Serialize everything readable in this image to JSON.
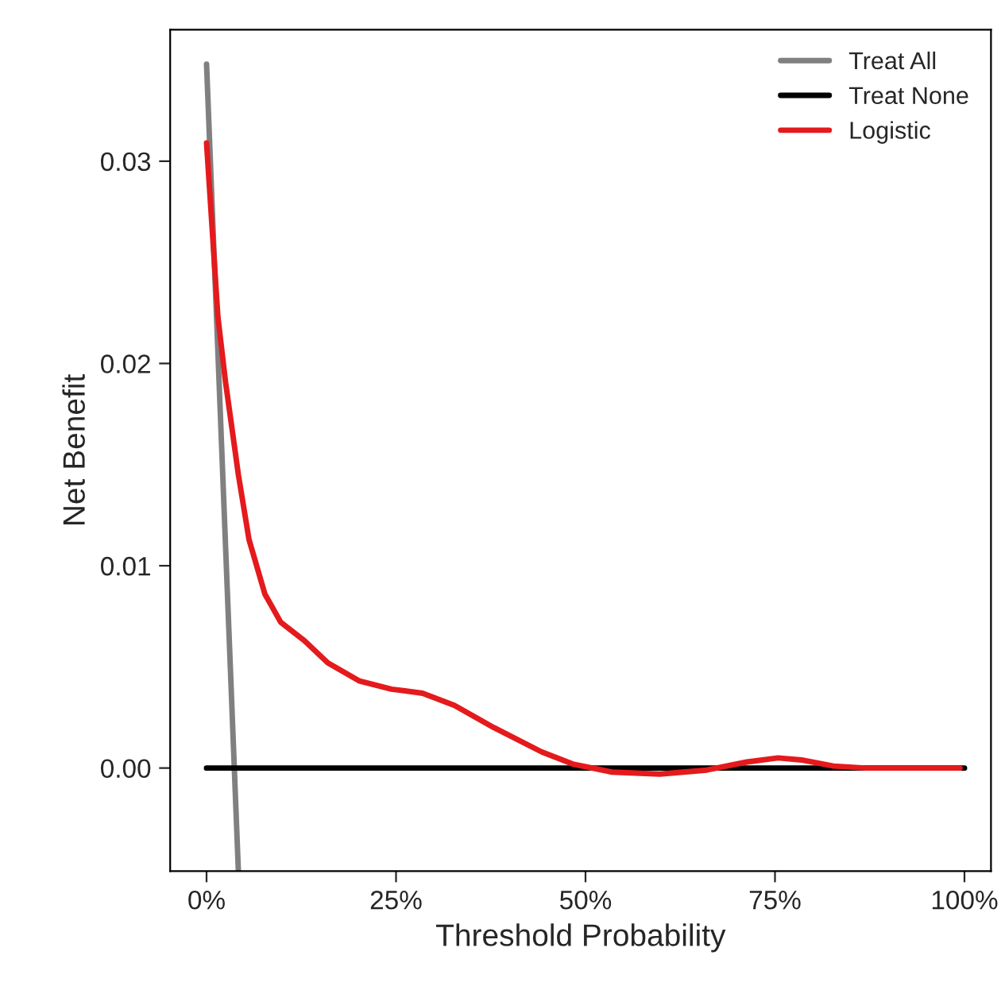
{
  "chart_data": {
    "type": "line",
    "xlabel": "Threshold Probability",
    "ylabel": "Net Benefit",
    "xlim": [
      -4.8,
      103.5
    ],
    "ylim": [
      -0.0051,
      0.0365
    ],
    "xticks": [
      {
        "value": 0,
        "label": "0%"
      },
      {
        "value": 25,
        "label": "25%"
      },
      {
        "value": 50,
        "label": "50%"
      },
      {
        "value": 75,
        "label": "75%"
      },
      {
        "value": 100,
        "label": "100%"
      }
    ],
    "yticks": [
      {
        "value": 0,
        "label": "0.00"
      },
      {
        "value": 0.01,
        "label": "0.01"
      },
      {
        "value": 0.02,
        "label": "0.02"
      },
      {
        "value": 0.03,
        "label": "0.03"
      }
    ],
    "grid": false,
    "legend": "top right",
    "line_style": "solid",
    "marker": "none",
    "series": [
      {
        "name": "Treat All",
        "color": "#808080",
        "x": [
          0,
          4.2
        ],
        "values": [
          0.0348,
          -0.0051
        ]
      },
      {
        "name": "Treat None",
        "color": "#000000",
        "x": [
          0,
          100
        ],
        "values": [
          0,
          0
        ]
      },
      {
        "name": "Logistic",
        "color": "#e41a1c",
        "x": [
          0,
          1.5,
          2.5,
          4.2,
          5.6,
          7.7,
          9.8,
          12.9,
          16,
          20.2,
          24.4,
          28.5,
          32.7,
          37.9,
          44.2,
          48.3,
          53.5,
          59.8,
          66,
          71.3,
          75.4,
          78.5,
          82.7,
          86.9,
          99.4
        ],
        "values": [
          0.0309,
          0.0223,
          0.0191,
          0.0145,
          0.0113,
          0.0086,
          0.0072,
          0.0063,
          0.0052,
          0.0043,
          0.0039,
          0.0037,
          0.0031,
          0.002,
          0.0008,
          0.0002,
          -0.0002,
          -0.0003,
          -0.0001,
          0.0003,
          0.0005,
          0.0004,
          0.0001,
          0,
          0
        ]
      }
    ]
  }
}
